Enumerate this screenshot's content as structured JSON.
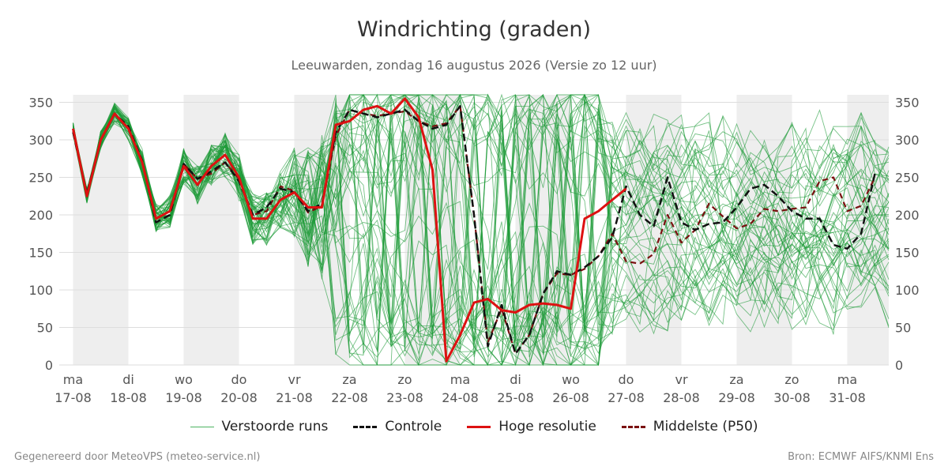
{
  "chart_data": {
    "type": "line",
    "title": "Windrichting (graden)",
    "subtitle": "Leeuwarden, zondag 16 augustus 2026 (Versie zo 12 uur)",
    "ylim": [
      0,
      360
    ],
    "yticks": [
      0,
      50,
      100,
      150,
      200,
      250,
      300,
      350
    ],
    "x_range_days": [
      -0.25,
      14.75
    ],
    "day_labels": [
      {
        "day": "ma",
        "date": "17-08"
      },
      {
        "day": "di",
        "date": "18-08"
      },
      {
        "day": "wo",
        "date": "19-08"
      },
      {
        "day": "do",
        "date": "20-08"
      },
      {
        "day": "vr",
        "date": "21-08"
      },
      {
        "day": "za",
        "date": "22-08"
      },
      {
        "day": "zo",
        "date": "23-08"
      },
      {
        "day": "ma",
        "date": "24-08"
      },
      {
        "day": "di",
        "date": "25-08"
      },
      {
        "day": "wo",
        "date": "26-08"
      },
      {
        "day": "do",
        "date": "27-08"
      },
      {
        "day": "vr",
        "date": "28-08"
      },
      {
        "day": "za",
        "date": "29-08"
      },
      {
        "day": "zo",
        "date": "30-08"
      },
      {
        "day": "ma",
        "date": "31-08"
      }
    ],
    "shaded_days": [
      0,
      2,
      4,
      6,
      8,
      10,
      12,
      14
    ],
    "ensemble_member_count": 50,
    "series": [
      {
        "name": "Hoge resolutie",
        "color": "#dd1111",
        "points": [
          [
            0,
            315
          ],
          [
            0.25,
            225
          ],
          [
            0.5,
            300
          ],
          [
            0.75,
            335
          ],
          [
            1,
            315
          ],
          [
            1.25,
            270
          ],
          [
            1.5,
            195
          ],
          [
            1.75,
            205
          ],
          [
            2,
            265
          ],
          [
            2.25,
            240
          ],
          [
            2.5,
            265
          ],
          [
            2.75,
            280
          ],
          [
            3,
            250
          ],
          [
            3.25,
            195
          ],
          [
            3.5,
            195
          ],
          [
            3.75,
            220
          ],
          [
            4,
            230
          ],
          [
            4.25,
            210
          ],
          [
            4.5,
            210
          ],
          [
            4.75,
            320
          ],
          [
            5,
            325
          ],
          [
            5.25,
            340
          ],
          [
            5.5,
            345
          ],
          [
            5.75,
            335
          ],
          [
            6,
            355
          ],
          [
            6.25,
            330
          ],
          [
            6.5,
            260
          ],
          [
            6.75,
            5
          ],
          [
            7,
            40
          ],
          [
            7.25,
            83
          ],
          [
            7.5,
            88
          ],
          [
            7.75,
            73
          ],
          [
            8,
            70
          ],
          [
            8.25,
            80
          ],
          [
            8.5,
            82
          ],
          [
            8.75,
            80
          ],
          [
            9,
            75
          ],
          [
            9.25,
            195
          ],
          [
            9.5,
            205
          ],
          [
            9.75,
            220
          ],
          [
            10,
            235
          ]
        ]
      },
      {
        "name": "Controle",
        "color": "#111111",
        "points": [
          [
            0,
            310
          ],
          [
            0.25,
            228
          ],
          [
            0.5,
            300
          ],
          [
            0.75,
            335
          ],
          [
            1,
            318
          ],
          [
            1.25,
            272
          ],
          [
            1.5,
            190
          ],
          [
            1.75,
            200
          ],
          [
            2,
            268
          ],
          [
            2.25,
            248
          ],
          [
            2.5,
            258
          ],
          [
            2.75,
            270
          ],
          [
            3,
            245
          ],
          [
            3.25,
            200
          ],
          [
            3.5,
            210
          ],
          [
            3.75,
            235
          ],
          [
            4,
            230
          ],
          [
            4.25,
            205
          ],
          [
            4.5,
            215
          ],
          [
            4.75,
            310
          ],
          [
            5,
            340
          ],
          [
            5.25,
            335
          ],
          [
            5.5,
            330
          ],
          [
            5.75,
            335
          ],
          [
            6,
            340
          ],
          [
            6.25,
            325
          ],
          [
            6.5,
            315
          ],
          [
            6.75,
            320
          ],
          [
            7,
            345
          ],
          [
            7.25,
            200
          ],
          [
            7.5,
            25
          ],
          [
            7.75,
            80
          ],
          [
            8,
            15
          ],
          [
            8.25,
            40
          ],
          [
            8.5,
            95
          ],
          [
            8.75,
            125
          ],
          [
            9,
            120
          ],
          [
            9.25,
            130
          ],
          [
            9.5,
            145
          ],
          [
            9.75,
            170
          ],
          [
            10,
            238
          ],
          [
            10.25,
            200
          ],
          [
            10.5,
            185
          ],
          [
            10.75,
            250
          ],
          [
            11,
            190
          ],
          [
            11.25,
            180
          ],
          [
            11.5,
            188
          ],
          [
            11.75,
            190
          ],
          [
            12,
            210
          ],
          [
            12.25,
            235
          ],
          [
            12.5,
            240
          ],
          [
            12.75,
            225
          ],
          [
            13,
            205
          ],
          [
            13.25,
            195
          ],
          [
            13.5,
            195
          ],
          [
            13.75,
            160
          ],
          [
            14,
            155
          ],
          [
            14.25,
            175
          ],
          [
            14.5,
            255
          ]
        ]
      },
      {
        "name": "Middelste (P50)",
        "color": "#7a1010",
        "points": [
          [
            0,
            312
          ],
          [
            0.25,
            228
          ],
          [
            0.5,
            300
          ],
          [
            0.75,
            335
          ],
          [
            1,
            315
          ],
          [
            1.25,
            272
          ],
          [
            1.5,
            195
          ],
          [
            1.75,
            205
          ],
          [
            2,
            268
          ],
          [
            2.25,
            248
          ],
          [
            2.5,
            255
          ],
          [
            2.75,
            270
          ],
          [
            3,
            248
          ],
          [
            3.25,
            200
          ],
          [
            3.5,
            205
          ],
          [
            3.75,
            238
          ],
          [
            4,
            232
          ],
          [
            4.25,
            203
          ],
          [
            4.5,
            212
          ],
          [
            4.75,
            305
          ],
          [
            5,
            340
          ],
          [
            5.25,
            335
          ],
          [
            5.5,
            332
          ],
          [
            5.75,
            335
          ],
          [
            6,
            338
          ],
          [
            6.25,
            325
          ],
          [
            6.5,
            318
          ],
          [
            6.75,
            322
          ],
          [
            7,
            345
          ],
          [
            7.25,
            200
          ],
          [
            7.5,
            30
          ],
          [
            7.75,
            75
          ],
          [
            8,
            15
          ],
          [
            8.25,
            40
          ],
          [
            8.5,
            95
          ],
          [
            8.75,
            122
          ],
          [
            9,
            120
          ],
          [
            9.25,
            128
          ],
          [
            9.5,
            145
          ],
          [
            9.75,
            175
          ],
          [
            10,
            138
          ],
          [
            10.25,
            135
          ],
          [
            10.5,
            148
          ],
          [
            10.75,
            200
          ],
          [
            11,
            163
          ],
          [
            11.25,
            180
          ],
          [
            11.5,
            215
          ],
          [
            11.75,
            198
          ],
          [
            12,
            182
          ],
          [
            12.25,
            188
          ],
          [
            12.5,
            208
          ],
          [
            12.75,
            205
          ],
          [
            13,
            208
          ],
          [
            13.25,
            210
          ],
          [
            13.5,
            245
          ],
          [
            13.75,
            250
          ],
          [
            14,
            205
          ],
          [
            14.25,
            212
          ],
          [
            14.5,
            250
          ]
        ]
      }
    ],
    "legend": {
      "position": "bottom",
      "items": [
        {
          "label": "Verstoorde runs",
          "style": "thin-green"
        },
        {
          "label": "Controle",
          "style": "dashed-black"
        },
        {
          "label": "Hoge resolutie",
          "style": "solid-red"
        },
        {
          "label": "Middelste (P50)",
          "style": "dashed-darkred"
        }
      ]
    }
  },
  "colors": {
    "ensemble": "#1a9a36",
    "shade": "#eeeeee",
    "grid": "#dddddd"
  },
  "footer": {
    "left": "Gegenereerd door MeteoVPS (meteo-service.nl)",
    "right": "Bron: ECMWF AIFS/KNMI Ens"
  }
}
